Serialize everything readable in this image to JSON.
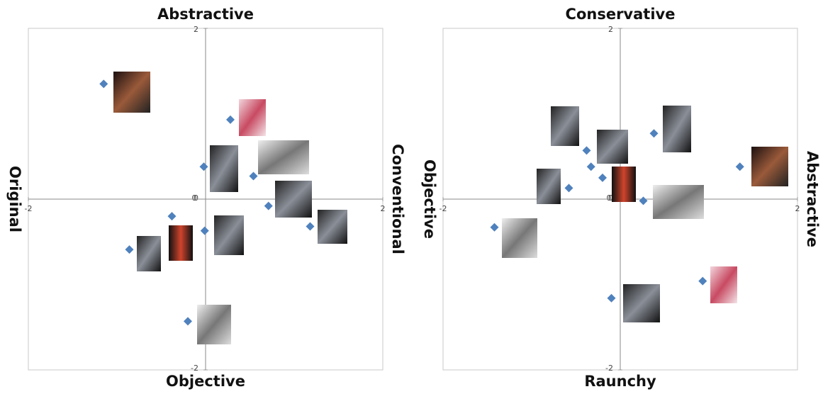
{
  "chart_data": [
    {
      "type": "scatter",
      "top_label": "Abstractive",
      "bottom_label": "Objective",
      "left_label": "Original",
      "right_label": "Conventional",
      "color": "#4f81bd",
      "x": [
        -1.15,
        0.28,
        -0.02,
        0.54,
        0.71,
        1.18,
        -0.38,
        -0.01,
        -0.86,
        -0.2
      ],
      "values": [
        1.35,
        0.93,
        0.38,
        0.27,
        -0.08,
        -0.32,
        -0.2,
        -0.37,
        -0.59,
        -1.43
      ],
      "xlim": [
        -2,
        2
      ],
      "ylim": [
        -2,
        2
      ],
      "xticks": [
        -2,
        0,
        2
      ],
      "yticks": [
        -2,
        0,
        2
      ]
    },
    {
      "type": "scatter",
      "top_label": "Conservative",
      "bottom_label": "Raunchy",
      "left_label": "Objective",
      "right_label": "Abstractive",
      "color": "#4f81bd",
      "x": [
        0.38,
        -0.38,
        -0.33,
        -0.2,
        1.35,
        -0.58,
        0.26,
        -1.42,
        0.93,
        -0.1
      ],
      "values": [
        0.77,
        0.57,
        0.38,
        0.25,
        0.38,
        0.13,
        -0.02,
        -0.33,
        -0.96,
        -1.16
      ],
      "xlim": [
        -2,
        2
      ],
      "ylim": [
        -2,
        2
      ],
      "xticks": [
        -2,
        0,
        2
      ],
      "yticks": [
        -2,
        0,
        2
      ]
    }
  ]
}
